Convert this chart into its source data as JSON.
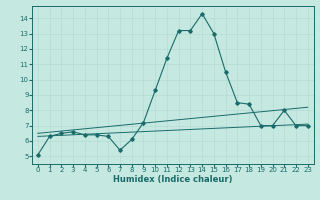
{
  "title": "",
  "xlabel": "Humidex (Indice chaleur)",
  "ylabel": "",
  "bg_color": "#c5e8e0",
  "line_color": "#1a6b6b",
  "xlim": [
    -0.5,
    23.5
  ],
  "ylim": [
    4.5,
    14.8
  ],
  "xticks": [
    0,
    1,
    2,
    3,
    4,
    5,
    6,
    7,
    8,
    9,
    10,
    11,
    12,
    13,
    14,
    15,
    16,
    17,
    18,
    19,
    20,
    21,
    22,
    23
  ],
  "yticks": [
    5,
    6,
    7,
    8,
    9,
    10,
    11,
    12,
    13,
    14
  ],
  "main_x": [
    0,
    1,
    2,
    3,
    4,
    5,
    6,
    7,
    8,
    9,
    10,
    11,
    12,
    13,
    14,
    15,
    16,
    17,
    18,
    19,
    20,
    21,
    22,
    23
  ],
  "main_y": [
    5.1,
    6.3,
    6.5,
    6.6,
    6.4,
    6.4,
    6.3,
    5.4,
    6.1,
    7.2,
    9.3,
    11.4,
    13.2,
    13.2,
    14.3,
    13.0,
    10.5,
    8.5,
    8.4,
    7.0,
    7.0,
    8.0,
    7.0,
    7.0
  ],
  "line1_x": [
    0,
    23
  ],
  "line1_y": [
    6.3,
    7.1
  ],
  "line2_x": [
    0,
    23
  ],
  "line2_y": [
    6.5,
    8.2
  ],
  "fontsize_label": 6,
  "fontsize_tick": 5
}
